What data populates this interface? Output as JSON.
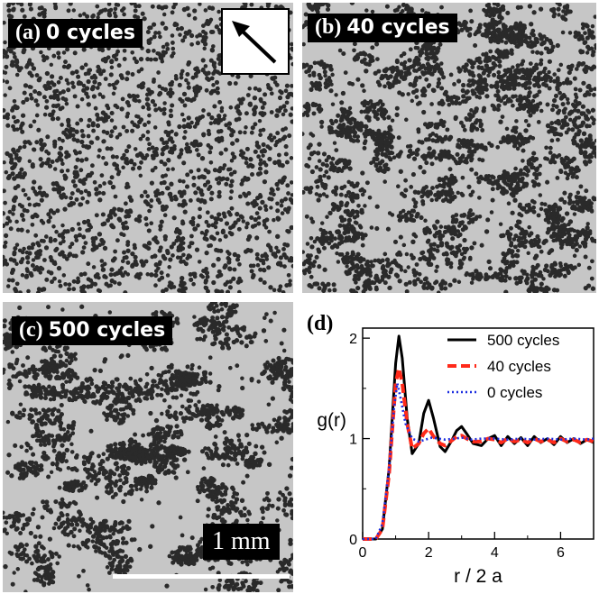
{
  "panels": {
    "a": {
      "letter": "(a)",
      "cycles": "0 cycles"
    },
    "b": {
      "letter": "(b)",
      "cycles": "40 cycles"
    },
    "c": {
      "letter": "(c)",
      "cycles": "500 cycles",
      "scale_label": "1 mm"
    },
    "d": {
      "letter": "(d)"
    }
  },
  "chart_data": {
    "type": "line",
    "xlabel": "r / 2 a",
    "ylabel": "g(r)",
    "xlim": [
      0,
      7
    ],
    "ylim": [
      0,
      2.1
    ],
    "xticks": [
      0,
      2,
      4,
      6
    ],
    "yticks": [
      0,
      1,
      2
    ],
    "legend_position": "top-right",
    "series": [
      {
        "name": "500 cycles",
        "color": "#000000",
        "style": "solid",
        "x": [
          0,
          0.4,
          0.6,
          0.8,
          1.0,
          1.1,
          1.2,
          1.35,
          1.5,
          1.7,
          1.85,
          2.0,
          2.15,
          2.35,
          2.5,
          2.7,
          2.85,
          3.0,
          3.15,
          3.35,
          3.6,
          3.8,
          4.0,
          4.2,
          4.4,
          4.6,
          4.8,
          5.0,
          5.2,
          5.4,
          5.6,
          5.8,
          6.0,
          6.2,
          6.4,
          6.6,
          6.8,
          7.0
        ],
        "y": [
          0,
          0,
          0.1,
          0.7,
          1.75,
          2.02,
          1.8,
          1.2,
          0.85,
          0.95,
          1.25,
          1.38,
          1.2,
          0.92,
          0.87,
          0.98,
          1.08,
          1.12,
          1.05,
          0.95,
          0.93,
          1.0,
          1.03,
          0.93,
          1.02,
          0.95,
          1.01,
          0.93,
          1.02,
          0.96,
          1.0,
          0.94,
          1.02,
          0.96,
          1.0,
          0.95,
          0.99,
          0.96
        ]
      },
      {
        "name": "40 cycles",
        "color": "#ff2a1a",
        "style": "dashed",
        "x": [
          0,
          0.4,
          0.6,
          0.8,
          1.0,
          1.1,
          1.2,
          1.35,
          1.5,
          1.7,
          1.85,
          2.0,
          2.15,
          2.35,
          2.5,
          2.7,
          2.85,
          3.0,
          3.15,
          3.35,
          3.6,
          3.8,
          4.0,
          4.2,
          4.4,
          4.6,
          4.8,
          5.0,
          5.2,
          5.4,
          5.6,
          5.8,
          6.0,
          6.2,
          6.4,
          6.6,
          6.8,
          7.0
        ],
        "y": [
          0,
          0,
          0.1,
          0.65,
          1.55,
          1.7,
          1.55,
          1.15,
          0.9,
          0.95,
          1.05,
          1.1,
          1.02,
          0.95,
          0.93,
          0.98,
          1.02,
          1.03,
          1.0,
          0.97,
          0.97,
          1.0,
          0.99,
          0.96,
          1.0,
          0.97,
          0.99,
          0.96,
          1.0,
          0.97,
          0.99,
          0.96,
          1.0,
          0.97,
          0.99,
          0.96,
          0.99,
          0.97
        ]
      },
      {
        "name": "0 cycles",
        "color": "#1c2ee0",
        "style": "dotted",
        "x": [
          0,
          0.4,
          0.6,
          0.8,
          0.95,
          1.05,
          1.15,
          1.3,
          1.5,
          1.7,
          1.9,
          2.1,
          2.3,
          2.5,
          2.8,
          3.0,
          3.3,
          3.6,
          4.0,
          4.4,
          4.8,
          5.2,
          5.6,
          6.0,
          6.4,
          6.8,
          7.0
        ],
        "y": [
          0,
          0,
          0.15,
          0.7,
          1.3,
          1.55,
          1.4,
          1.15,
          1.0,
          0.97,
          0.99,
          1.01,
          1.0,
          0.99,
          1.0,
          1.01,
          0.99,
          1.0,
          1.0,
          0.99,
          1.0,
          0.99,
          1.0,
          0.99,
          1.0,
          0.99,
          1.0
        ]
      }
    ]
  }
}
